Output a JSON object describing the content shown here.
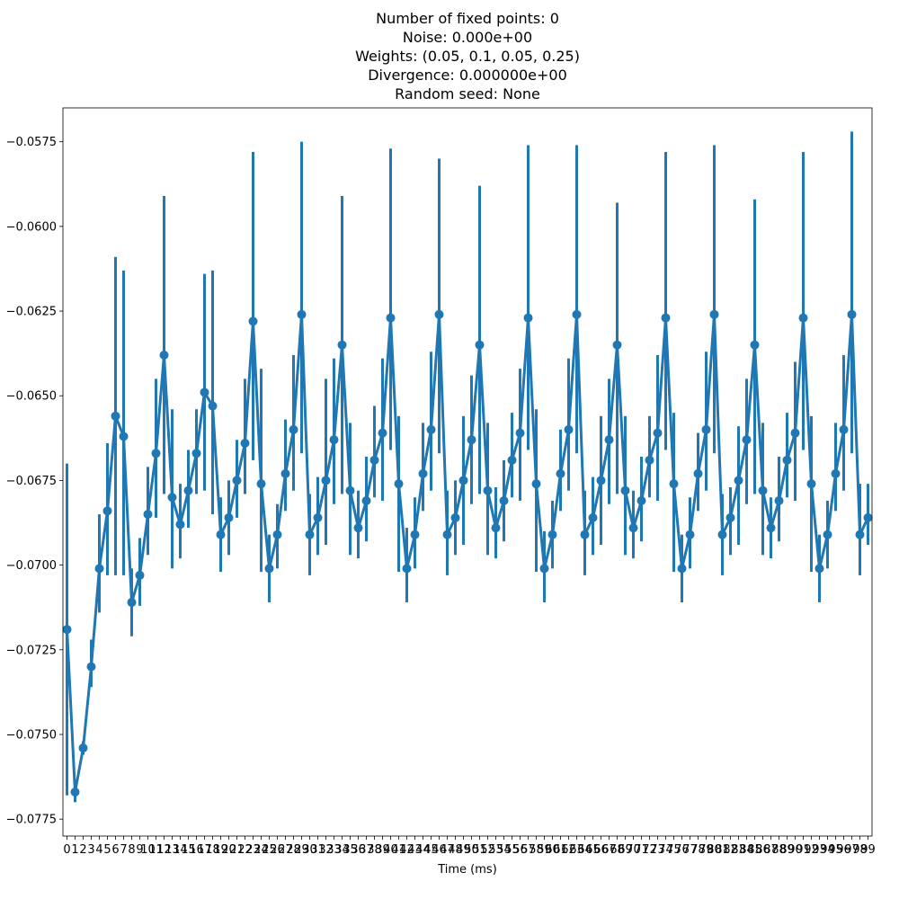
{
  "title_lines": [
    "Number of fixed points: 0",
    "Noise: 0.000e+00",
    "Weights: (0.05, 0.1, 0.05, 0.25)",
    "Divergence: 0.000000e+00",
    "Random seed: None"
  ],
  "chart_data": {
    "type": "line",
    "title": "Number of fixed points: 0\nNoise: 0.000e+00\nWeights: (0.05, 0.1, 0.05, 0.25)\nDivergence: 0.000000e+00\nRandom seed: None",
    "xlabel": "Time (ms)",
    "ylabel": "",
    "xlim": [
      -0.5,
      99.5
    ],
    "ylim": [
      -0.078,
      -0.0565
    ],
    "yticks": [
      -0.0775,
      -0.075,
      -0.0725,
      -0.07,
      -0.0675,
      -0.065,
      -0.0625,
      -0.06,
      -0.0575
    ],
    "ytick_labels": [
      "−0.0775",
      "−0.0750",
      "−0.0725",
      "−0.0700",
      "−0.0675",
      "−0.0650",
      "−0.0625",
      "−0.0600",
      "−0.0575"
    ],
    "grid": false,
    "color": "#1f77b4",
    "x": [
      0,
      1,
      2,
      3,
      4,
      5,
      6,
      7,
      8,
      9,
      10,
      11,
      12,
      13,
      14,
      15,
      16,
      17,
      18,
      19,
      20,
      21,
      22,
      23,
      24,
      25,
      26,
      27,
      28,
      29,
      30,
      31,
      32,
      33,
      34,
      35,
      36,
      37,
      38,
      39,
      40,
      41,
      42,
      43,
      44,
      45,
      46,
      47,
      48,
      49,
      50,
      51,
      52,
      53,
      54,
      55,
      56,
      57,
      58,
      59,
      60,
      61,
      62,
      63,
      64,
      65,
      66,
      67,
      68,
      69,
      70,
      71,
      72,
      73,
      74,
      75,
      76,
      77,
      78,
      79,
      80,
      81,
      82,
      83,
      84,
      85,
      86,
      87,
      88,
      89,
      90,
      91,
      92,
      93,
      94,
      95,
      96,
      97,
      98,
      99
    ],
    "values": [
      -0.0719,
      -0.0767,
      -0.0754,
      -0.073,
      -0.0701,
      -0.0684,
      -0.0656,
      -0.0662,
      -0.0711,
      -0.0703,
      -0.0685,
      -0.0667,
      -0.0638,
      -0.068,
      -0.0688,
      -0.0678,
      -0.0667,
      -0.0649,
      -0.0653,
      -0.0691,
      -0.0686,
      -0.0675,
      -0.0664,
      -0.0628,
      -0.0676,
      -0.0701,
      -0.0691,
      -0.0673,
      -0.066,
      -0.0626,
      -0.0691,
      -0.0686,
      -0.0675,
      -0.0663,
      -0.0635,
      -0.0678,
      -0.0689,
      -0.0681,
      -0.0669,
      -0.0661,
      -0.0627,
      -0.0676,
      -0.0701,
      -0.0691,
      -0.0673,
      -0.066,
      -0.0626,
      -0.0691,
      -0.0686,
      -0.0675,
      -0.0663,
      -0.0635,
      -0.0678,
      -0.0689,
      -0.0681,
      -0.0669,
      -0.0661,
      -0.0627,
      -0.0676,
      -0.0701,
      -0.0691,
      -0.0673,
      -0.066,
      -0.0626,
      -0.0691,
      -0.0686,
      -0.0675,
      -0.0663,
      -0.0635,
      -0.0678,
      -0.0689,
      -0.0681,
      -0.0669,
      -0.0661,
      -0.0627,
      -0.0676,
      -0.0701,
      -0.0691,
      -0.0673,
      -0.066,
      -0.0626,
      -0.0691,
      -0.0686,
      -0.0675,
      -0.0663,
      -0.0635,
      -0.0678,
      -0.0689,
      -0.0681,
      -0.0669,
      -0.0661,
      -0.0627,
      -0.0676,
      -0.0701,
      -0.0691,
      -0.0673,
      -0.066,
      -0.0626,
      -0.0691,
      -0.0686
    ],
    "err_low": [
      -0.0768,
      -0.077,
      -0.0756,
      -0.0736,
      -0.0714,
      -0.0703,
      -0.0703,
      -0.0703,
      -0.0721,
      -0.0712,
      -0.0697,
      -0.0686,
      -0.0679,
      -0.0701,
      -0.0698,
      -0.0689,
      -0.0679,
      -0.0678,
      -0.0685,
      -0.0702,
      -0.0697,
      -0.0686,
      -0.0679,
      -0.0669,
      -0.0702,
      -0.0711,
      -0.0701,
      -0.0684,
      -0.0678,
      -0.0667,
      -0.0703,
      -0.0697,
      -0.0694,
      -0.0682,
      -0.0679,
      -0.0697,
      -0.0698,
      -0.0693,
      -0.068,
      -0.0681,
      -0.0666,
      -0.0702,
      -0.0711,
      -0.0701,
      -0.0684,
      -0.0678,
      -0.0667,
      -0.0703,
      -0.0697,
      -0.0694,
      -0.0682,
      -0.0679,
      -0.0697,
      -0.0698,
      -0.0693,
      -0.068,
      -0.0681,
      -0.0666,
      -0.0702,
      -0.0711,
      -0.0701,
      -0.0684,
      -0.0678,
      -0.0667,
      -0.0703,
      -0.0697,
      -0.0694,
      -0.0682,
      -0.0679,
      -0.0697,
      -0.0698,
      -0.0693,
      -0.068,
      -0.0681,
      -0.0666,
      -0.0702,
      -0.0711,
      -0.0701,
      -0.0684,
      -0.0678,
      -0.0667,
      -0.0703,
      -0.0697,
      -0.0694,
      -0.0682,
      -0.0679,
      -0.0697,
      -0.0698,
      -0.0693,
      -0.068,
      -0.0681,
      -0.0666,
      -0.0702,
      -0.0711,
      -0.0701,
      -0.0684,
      -0.0678,
      -0.0667,
      -0.0703,
      -0.0694
    ],
    "err_high": [
      -0.067,
      -0.0764,
      -0.0752,
      -0.0722,
      -0.0685,
      -0.0664,
      -0.0609,
      -0.0613,
      -0.0701,
      -0.0692,
      -0.0671,
      -0.0645,
      -0.0591,
      -0.0654,
      -0.0676,
      -0.0666,
      -0.0654,
      -0.0614,
      -0.0613,
      -0.068,
      -0.0675,
      -0.0663,
      -0.0645,
      -0.0578,
      -0.0642,
      -0.0691,
      -0.0682,
      -0.0657,
      -0.0638,
      -0.0575,
      -0.0679,
      -0.0674,
      -0.0645,
      -0.0639,
      -0.0591,
      -0.0658,
      -0.0678,
      -0.0668,
      -0.0653,
      -0.0639,
      -0.0577,
      -0.0656,
      -0.0689,
      -0.068,
      -0.0658,
      -0.0637,
      -0.058,
      -0.0678,
      -0.0675,
      -0.0656,
      -0.0644,
      -0.0588,
      -0.0658,
      -0.0677,
      -0.0669,
      -0.0655,
      -0.0642,
      -0.0576,
      -0.0654,
      -0.069,
      -0.0681,
      -0.066,
      -0.0639,
      -0.0576,
      -0.0678,
      -0.0674,
      -0.0656,
      -0.0645,
      -0.0593,
      -0.0656,
      -0.0678,
      -0.0668,
      -0.0656,
      -0.0638,
      -0.0578,
      -0.0655,
      -0.0691,
      -0.068,
      -0.0661,
      -0.0637,
      -0.0576,
      -0.0679,
      -0.0677,
      -0.0659,
      -0.0645,
      -0.0592,
      -0.0658,
      -0.068,
      -0.0668,
      -0.0655,
      -0.064,
      -0.0578,
      -0.0656,
      -0.0691,
      -0.0681,
      -0.0658,
      -0.0638,
      -0.0572,
      -0.0676,
      -0.0676
    ]
  }
}
